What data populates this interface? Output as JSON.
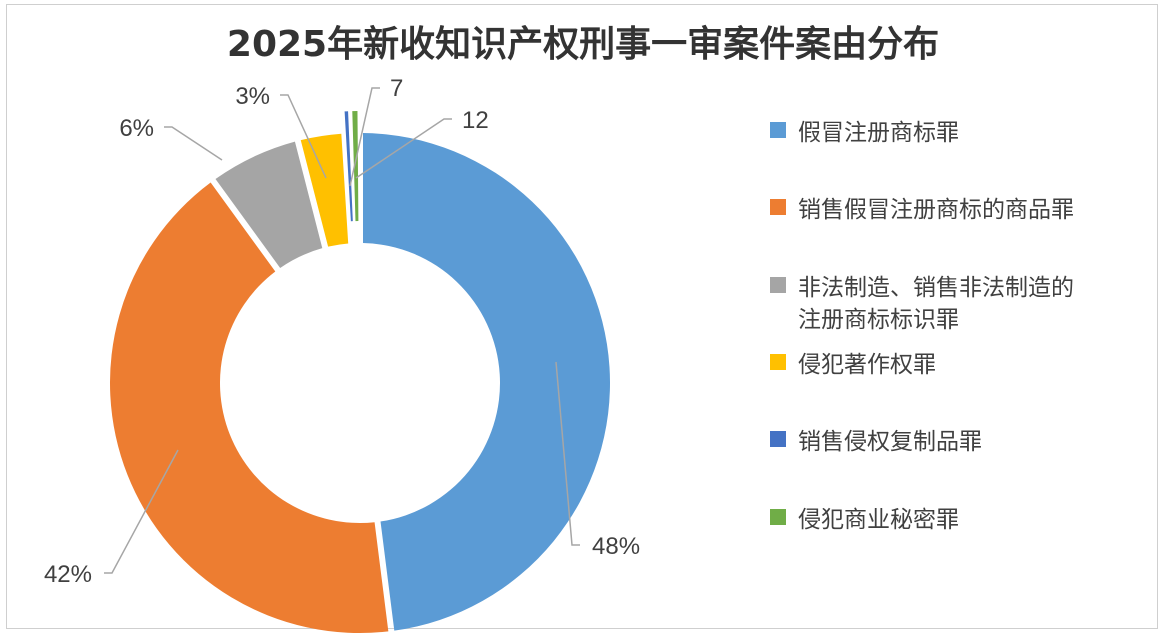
{
  "chart_data": {
    "type": "pie",
    "style": "doughnut",
    "title": "2025年新收知识产权刑事一审案件案由分布",
    "legend_position": "right",
    "series": [
      {
        "name": "假冒注册商标罪",
        "value": 48,
        "label": "48%",
        "color": "#5B9BD5"
      },
      {
        "name": "销售假冒注册商标的商品罪",
        "value": 42,
        "label": "42%",
        "color": "#ED7D31"
      },
      {
        "name": "非法制造、销售非法制造的注册商标标识罪",
        "value": 6,
        "label": "6%",
        "color": "#A5A5A5"
      },
      {
        "name": "侵犯著作权罪",
        "value": 3,
        "label": "3%",
        "color": "#FFC000"
      },
      {
        "name": "销售侵权复制品罪",
        "value": 0.4,
        "label": "7",
        "color": "#4472C4"
      },
      {
        "name": "侵犯商业秘密罪",
        "value": 0.6,
        "label": "12",
        "color": "#70AD47"
      }
    ],
    "legend_lines": [
      [
        "假冒注册商标罪"
      ],
      [
        "销售假冒注册商标的商品罪"
      ],
      [
        "非法制造、销售非法制造的",
        "注册商标标识罪"
      ],
      [
        "侵犯著作权罪"
      ],
      [
        "销售侵权复制品罪"
      ],
      [
        "侵犯商业秘密罪"
      ]
    ]
  }
}
